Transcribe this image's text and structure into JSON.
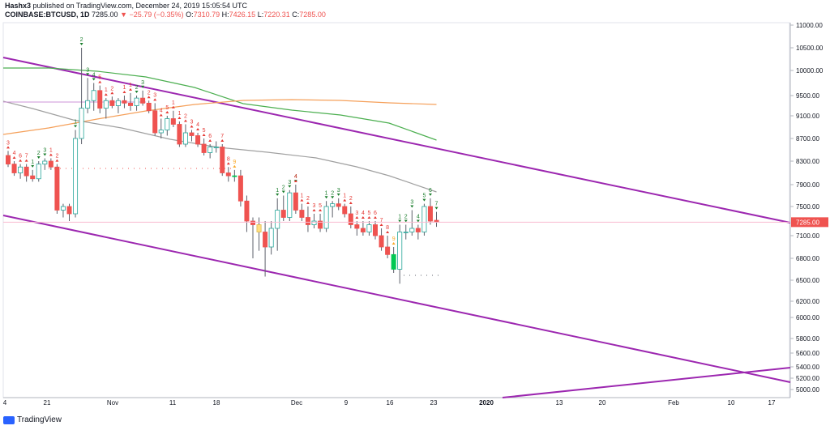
{
  "header": {
    "author": "Hashx3",
    "publish_text": "published on TradingView.com, December 24, 2019 15:05:54 UTC",
    "symbol": "COINBASE:BTCUSD, 1D",
    "last": "7285.00",
    "change": "▼ −25.79 (−0.35%)",
    "o_label": "O:",
    "o_value": "7310.79",
    "h_label": "H:",
    "h_value": "7426.15",
    "l_label": "L:",
    "l_value": "7220.31",
    "c_label": "C:",
    "c_value": "7285.00"
  },
  "footer": {
    "brand": "TradingView"
  },
  "chart_data": {
    "type": "candlestick",
    "symbol": "COINBASE:BTCUSD",
    "timeframe": "1D",
    "y_ticks": [
      5000,
      5200,
      5400,
      5600,
      5800,
      6000,
      6200,
      6500,
      6800,
      7100,
      7500,
      7900,
      8300,
      8700,
      9100,
      9500,
      10000,
      10500,
      11000
    ],
    "y_tick_labels": [
      "5000.00",
      "5200.00",
      "5400.00",
      "5600.00",
      "5800.00",
      "6000.00",
      "6200.00",
      "6500.00",
      "6800.00",
      "7100.00",
      "7500.00",
      "7900.00",
      "8300.00",
      "8700.00",
      "9100.00",
      "9500.00",
      "10000.00",
      "10500.00",
      "11000.00"
    ],
    "x_labels": [
      "4",
      "21",
      "Nov",
      "11",
      "18",
      "Dec",
      "9",
      "16",
      "23",
      "2020",
      "13",
      "20",
      "Feb",
      "10",
      "17"
    ],
    "last_price_label": "7285.00",
    "candles": [
      {
        "o": 8400,
        "h": 8480,
        "l": 8200,
        "c": 8250
      },
      {
        "o": 8250,
        "h": 8300,
        "l": 8050,
        "c": 8100
      },
      {
        "o": 8100,
        "h": 8250,
        "l": 8000,
        "c": 8200
      },
      {
        "o": 8200,
        "h": 8250,
        "l": 7950,
        "c": 8050
      },
      {
        "o": 8050,
        "h": 8150,
        "l": 7950,
        "c": 8000
      },
      {
        "o": 8000,
        "h": 8300,
        "l": 7950,
        "c": 8250
      },
      {
        "o": 8250,
        "h": 8350,
        "l": 8150,
        "c": 8300
      },
      {
        "o": 8300,
        "h": 8350,
        "l": 8150,
        "c": 8200
      },
      {
        "o": 8200,
        "h": 8250,
        "l": 7400,
        "c": 7450
      },
      {
        "o": 7450,
        "h": 7550,
        "l": 7350,
        "c": 7500
      },
      {
        "o": 7500,
        "h": 7550,
        "l": 7300,
        "c": 7400
      },
      {
        "o": 7400,
        "h": 8850,
        "l": 7350,
        "c": 8700
      },
      {
        "o": 8700,
        "h": 10500,
        "l": 8600,
        "c": 9250
      },
      {
        "o": 9250,
        "h": 9850,
        "l": 9150,
        "c": 9400
      },
      {
        "o": 9400,
        "h": 9750,
        "l": 9200,
        "c": 9600
      },
      {
        "o": 9600,
        "h": 9700,
        "l": 9150,
        "c": 9250
      },
      {
        "o": 9250,
        "h": 9450,
        "l": 9050,
        "c": 9400
      },
      {
        "o": 9400,
        "h": 9480,
        "l": 9250,
        "c": 9300
      },
      {
        "o": 9300,
        "h": 9450,
        "l": 9150,
        "c": 9400
      },
      {
        "o": 9400,
        "h": 9500,
        "l": 9250,
        "c": 9350
      },
      {
        "o": 9350,
        "h": 9550,
        "l": 9200,
        "c": 9300
      },
      {
        "o": 9300,
        "h": 9500,
        "l": 9200,
        "c": 9450
      },
      {
        "o": 9450,
        "h": 9600,
        "l": 9300,
        "c": 9350
      },
      {
        "o": 9350,
        "h": 9400,
        "l": 9150,
        "c": 9200
      },
      {
        "o": 9200,
        "h": 9350,
        "l": 8750,
        "c": 8800
      },
      {
        "o": 8800,
        "h": 9050,
        "l": 8700,
        "c": 8850
      },
      {
        "o": 8850,
        "h": 9100,
        "l": 8750,
        "c": 9050
      },
      {
        "o": 9050,
        "h": 9200,
        "l": 8900,
        "c": 8950
      },
      {
        "o": 8950,
        "h": 9000,
        "l": 8550,
        "c": 8600
      },
      {
        "o": 8600,
        "h": 8950,
        "l": 8550,
        "c": 8800
      },
      {
        "o": 8800,
        "h": 8850,
        "l": 8650,
        "c": 8750
      },
      {
        "o": 8750,
        "h": 8800,
        "l": 8550,
        "c": 8600
      },
      {
        "o": 8600,
        "h": 8700,
        "l": 8400,
        "c": 8450
      },
      {
        "o": 8450,
        "h": 8600,
        "l": 8350,
        "c": 8550
      },
      {
        "o": 8550,
        "h": 8650,
        "l": 8450,
        "c": 8550
      },
      {
        "o": 8550,
        "h": 8600,
        "l": 8050,
        "c": 8100
      },
      {
        "o": 8100,
        "h": 8200,
        "l": 7950,
        "c": 8050
      },
      {
        "o": 8050,
        "h": 8150,
        "l": 7950,
        "c": 8050
      },
      {
        "o": 8050,
        "h": 8150,
        "l": 7500,
        "c": 7600
      },
      {
        "o": 7600,
        "h": 7700,
        "l": 7150,
        "c": 7300
      },
      {
        "o": 7300,
        "h": 7350,
        "l": 6800,
        "c": 7250
      },
      {
        "o": 7250,
        "h": 7350,
        "l": 6900,
        "c": 7150
      },
      {
        "o": 7150,
        "h": 7300,
        "l": 6550,
        "c": 6950
      },
      {
        "o": 6950,
        "h": 7300,
        "l": 6850,
        "c": 7200
      },
      {
        "o": 7200,
        "h": 7650,
        "l": 6900,
        "c": 7450
      },
      {
        "o": 7450,
        "h": 7700,
        "l": 7300,
        "c": 7350
      },
      {
        "o": 7350,
        "h": 7800,
        "l": 7300,
        "c": 7750
      },
      {
        "o": 7750,
        "h": 7900,
        "l": 7400,
        "c": 7450
      },
      {
        "o": 7450,
        "h": 7550,
        "l": 7300,
        "c": 7350
      },
      {
        "o": 7350,
        "h": 7500,
        "l": 7150,
        "c": 7250
      },
      {
        "o": 7250,
        "h": 7400,
        "l": 7200,
        "c": 7300
      },
      {
        "o": 7300,
        "h": 7400,
        "l": 7150,
        "c": 7200
      },
      {
        "o": 7200,
        "h": 7600,
        "l": 7150,
        "c": 7500
      },
      {
        "o": 7500,
        "h": 7600,
        "l": 7350,
        "c": 7550
      },
      {
        "o": 7550,
        "h": 7650,
        "l": 7450,
        "c": 7500
      },
      {
        "o": 7500,
        "h": 7550,
        "l": 7350,
        "c": 7400
      },
      {
        "o": 7400,
        "h": 7500,
        "l": 7200,
        "c": 7250
      },
      {
        "o": 7250,
        "h": 7300,
        "l": 7100,
        "c": 7200
      },
      {
        "o": 7200,
        "h": 7300,
        "l": 7100,
        "c": 7150
      },
      {
        "o": 7150,
        "h": 7300,
        "l": 7100,
        "c": 7250
      },
      {
        "o": 7250,
        "h": 7300,
        "l": 7050,
        "c": 7100
      },
      {
        "o": 7100,
        "h": 7200,
        "l": 6900,
        "c": 6950
      },
      {
        "o": 6950,
        "h": 7100,
        "l": 6800,
        "c": 6850
      },
      {
        "o": 6850,
        "h": 6950,
        "l": 6600,
        "c": 6650
      },
      {
        "o": 6650,
        "h": 7250,
        "l": 6450,
        "c": 7150
      },
      {
        "o": 7150,
        "h": 7250,
        "l": 7050,
        "c": 7150
      },
      {
        "o": 7150,
        "h": 7450,
        "l": 7100,
        "c": 7200
      },
      {
        "o": 7200,
        "h": 7250,
        "l": 7050,
        "c": 7150
      },
      {
        "o": 7150,
        "h": 7550,
        "l": 7100,
        "c": 7500
      },
      {
        "o": 7500,
        "h": 7650,
        "l": 7250,
        "c": 7300
      },
      {
        "o": 7310.79,
        "h": 7426.15,
        "l": 7220.31,
        "c": 7285
      }
    ],
    "td_labels": [
      {
        "i": 0,
        "t": "3",
        "d": "up"
      },
      {
        "i": 1,
        "t": "4",
        "d": "up"
      },
      {
        "i": 2,
        "t": "6",
        "d": "up"
      },
      {
        "i": 3,
        "t": "7",
        "d": "up"
      },
      {
        "i": 4,
        "t": "1",
        "d": "down"
      },
      {
        "i": 5,
        "t": "2",
        "d": "down"
      },
      {
        "i": 6,
        "t": "3",
        "d": "down"
      },
      {
        "i": 7,
        "t": "1",
        "d": "up"
      },
      {
        "i": 8,
        "t": "2",
        "d": "up"
      },
      {
        "i": 11,
        "t": "1",
        "d": "down"
      },
      {
        "i": 12,
        "t": "2",
        "d": "down"
      },
      {
        "i": 13,
        "t": "3",
        "d": "down"
      },
      {
        "i": 14,
        "t": "4",
        "d": "down"
      },
      {
        "i": 15,
        "t": "5",
        "d": "up"
      },
      {
        "i": 16,
        "t": "1",
        "d": "up"
      },
      {
        "i": 17,
        "t": "2",
        "d": "up"
      },
      {
        "i": 19,
        "t": "1",
        "d": "up"
      },
      {
        "i": 20,
        "t": "1",
        "d": "up"
      },
      {
        "i": 21,
        "t": "2",
        "d": "down"
      },
      {
        "i": 22,
        "t": "3",
        "d": "down"
      },
      {
        "i": 23,
        "t": "2",
        "d": "up"
      },
      {
        "i": 24,
        "t": "3",
        "d": "up"
      },
      {
        "i": 25,
        "t": "4",
        "d": "up"
      },
      {
        "i": 26,
        "t": "5",
        "d": "up"
      },
      {
        "i": 27,
        "t": "1",
        "d": "up"
      },
      {
        "i": 28,
        "t": "1",
        "d": "up"
      },
      {
        "i": 29,
        "t": "2",
        "d": "up"
      },
      {
        "i": 30,
        "t": "3",
        "d": "up"
      },
      {
        "i": 31,
        "t": "4",
        "d": "up"
      },
      {
        "i": 32,
        "t": "5",
        "d": "up"
      },
      {
        "i": 33,
        "t": "6",
        "d": "up"
      },
      {
        "i": 35,
        "t": "7",
        "d": "up"
      },
      {
        "i": 36,
        "t": "8",
        "d": "up"
      },
      {
        "i": 37,
        "t": "9",
        "d": "up"
      },
      {
        "i": 44,
        "t": "1",
        "d": "down"
      },
      {
        "i": 45,
        "t": "2",
        "d": "down"
      },
      {
        "i": 46,
        "t": "3",
        "d": "down"
      },
      {
        "i": 47,
        "t": "4",
        "d": "down"
      },
      {
        "i": 48,
        "t": "1",
        "d": "up"
      },
      {
        "i": 49,
        "t": "2",
        "d": "up"
      },
      {
        "i": 50,
        "t": "3",
        "d": "up"
      },
      {
        "i": 47,
        "t": "4",
        "d": "up"
      },
      {
        "i": 51,
        "t": "5",
        "d": "up"
      },
      {
        "i": 52,
        "t": "1",
        "d": "down"
      },
      {
        "i": 53,
        "t": "2",
        "d": "down"
      },
      {
        "i": 54,
        "t": "3",
        "d": "down"
      },
      {
        "i": 55,
        "t": "1",
        "d": "up"
      },
      {
        "i": 56,
        "t": "2",
        "d": "up"
      },
      {
        "i": 57,
        "t": "3",
        "d": "up"
      },
      {
        "i": 58,
        "t": "4",
        "d": "up"
      },
      {
        "i": 59,
        "t": "5",
        "d": "up"
      },
      {
        "i": 60,
        "t": "6",
        "d": "up"
      },
      {
        "i": 61,
        "t": "7",
        "d": "up"
      },
      {
        "i": 62,
        "t": "8",
        "d": "up"
      },
      {
        "i": 63,
        "t": "9",
        "d": "up"
      },
      {
        "i": 64,
        "t": "1",
        "d": "down"
      },
      {
        "i": 65,
        "t": "2",
        "d": "down"
      },
      {
        "i": 66,
        "t": "3",
        "d": "down"
      },
      {
        "i": 67,
        "t": "4",
        "d": "down"
      },
      {
        "i": 68,
        "t": "5",
        "d": "down"
      },
      {
        "i": 69,
        "t": "6",
        "d": "down"
      },
      {
        "i": 70,
        "t": "7",
        "d": "down"
      }
    ],
    "colors": {
      "up": "#ffffff",
      "down": "#ef5350",
      "up_outline": "#26a69a",
      "wick": "#5d606b",
      "green_bar": "#00c853",
      "yellow_bar": "#ffe082",
      "channel": "#9c27b0",
      "ma_green": "#4caf50",
      "ma_orange": "#f5a05a",
      "ma_gray": "#a0a0a0",
      "td_up": "#e53935",
      "td_down": "#1b7e2d",
      "td_nine": "#f9a825"
    }
  }
}
